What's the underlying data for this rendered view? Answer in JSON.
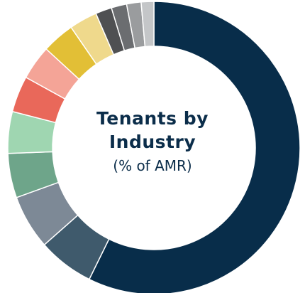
{
  "chart_data": {
    "type": "pie",
    "variant": "donut",
    "title_lines": [
      "Tenants by",
      "Industry"
    ],
    "subtitle": "(% of AMR)",
    "legend": "none",
    "slices": [
      {
        "value": 57.3,
        "color": "#082d4a"
      },
      {
        "value": 6.2,
        "color": "#3f5a6c"
      },
      {
        "value": 6.0,
        "color": "#7d8996"
      },
      {
        "value": 4.9,
        "color": "#6ea58a"
      },
      {
        "value": 4.6,
        "color": "#9fd6b1"
      },
      {
        "value": 4.0,
        "color": "#e9685a"
      },
      {
        "value": 3.8,
        "color": "#f4a497"
      },
      {
        "value": 3.6,
        "color": "#e2bf36"
      },
      {
        "value": 3.1,
        "color": "#efd98c"
      },
      {
        "value": 1.8,
        "color": "#4f5052"
      },
      {
        "value": 1.7,
        "color": "#6b6d70"
      },
      {
        "value": 1.6,
        "color": "#9a9c9e"
      },
      {
        "value": 1.4,
        "color": "#c4c6c8"
      }
    ]
  }
}
